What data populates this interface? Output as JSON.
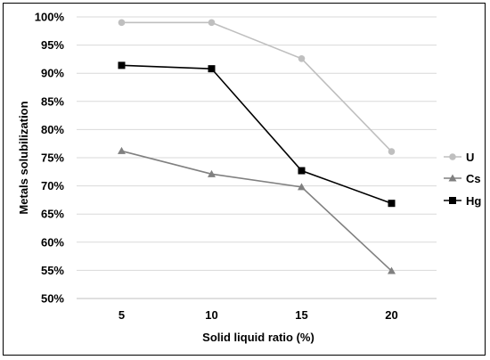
{
  "chart_data": {
    "type": "line",
    "xlabel": "Solid liquid ratio (%)",
    "ylabel": "Metals solubilization",
    "categories": [
      "5",
      "10",
      "15",
      "20"
    ],
    "ylim": [
      0.5,
      1.0
    ],
    "yticks": [
      "50%",
      "55%",
      "60%",
      "65%",
      "70%",
      "75%",
      "80%",
      "85%",
      "90%",
      "95%",
      "100%"
    ],
    "grid": "horizontal",
    "legend_position": "right",
    "series": [
      {
        "name": "U",
        "color": "#bfbfbf",
        "marker": "circle",
        "values": [
          0.99,
          0.99,
          0.926,
          0.761
        ]
      },
      {
        "name": "Cs",
        "color": "#808080",
        "marker": "triangle",
        "values": [
          0.762,
          0.721,
          0.698,
          0.549
        ]
      },
      {
        "name": "Hg",
        "color": "#000000",
        "marker": "square",
        "values": [
          0.914,
          0.908,
          0.727,
          0.669
        ]
      }
    ]
  }
}
